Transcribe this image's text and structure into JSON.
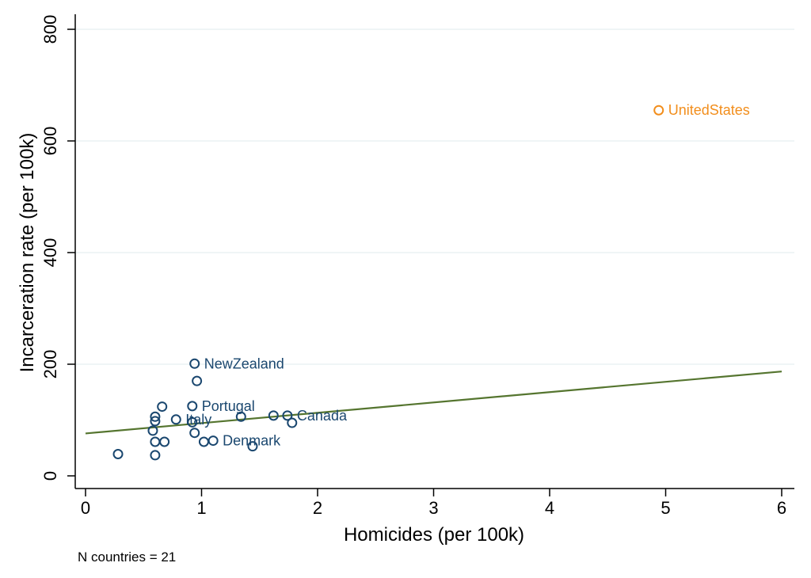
{
  "chart_data": {
    "type": "scatter",
    "title": "",
    "xlabel": "Homicides (per 100k)",
    "ylabel": "Incarceration rate (per 100k)",
    "xlim": [
      0,
      6
    ],
    "ylim": [
      0,
      800
    ],
    "xticks": [
      "0",
      "1",
      "2",
      "3",
      "4",
      "5",
      "6"
    ],
    "yticks": [
      "0",
      "200",
      "400",
      "600",
      "800"
    ],
    "grid": "horizontal",
    "colors": {
      "points": "#1a476f",
      "highlight": "#f28e1c",
      "fit_line": "#55752f",
      "grid": "#eaf2f3"
    },
    "series": [
      {
        "points": [
          {
            "x": 0.94,
            "y": 201,
            "label": "NewZealand"
          },
          {
            "x": 0.96,
            "y": 170,
            "label": ""
          },
          {
            "x": 0.92,
            "y": 125,
            "label": "Portugal"
          },
          {
            "x": 0.66,
            "y": 124,
            "label": ""
          },
          {
            "x": 0.6,
            "y": 106,
            "label": ""
          },
          {
            "x": 0.6,
            "y": 98,
            "label": ""
          },
          {
            "x": 0.78,
            "y": 101,
            "label": "Italy"
          },
          {
            "x": 0.92,
            "y": 96,
            "label": ""
          },
          {
            "x": 0.58,
            "y": 81,
            "label": ""
          },
          {
            "x": 0.94,
            "y": 77,
            "label": ""
          },
          {
            "x": 0.6,
            "y": 61,
            "label": ""
          },
          {
            "x": 0.68,
            "y": 61,
            "label": ""
          },
          {
            "x": 1.02,
            "y": 61,
            "label": ""
          },
          {
            "x": 1.1,
            "y": 63,
            "label": "Denmark"
          },
          {
            "x": 1.44,
            "y": 53,
            "label": ""
          },
          {
            "x": 1.34,
            "y": 106,
            "label": ""
          },
          {
            "x": 1.62,
            "y": 108,
            "label": ""
          },
          {
            "x": 1.74,
            "y": 108,
            "label": "Canada"
          },
          {
            "x": 1.78,
            "y": 95,
            "label": ""
          },
          {
            "x": 0.28,
            "y": 39,
            "label": ""
          },
          {
            "x": 0.6,
            "y": 37,
            "label": ""
          }
        ]
      },
      {
        "highlight": true,
        "points": [
          {
            "x": 4.94,
            "y": 655,
            "label": "UnitedStates"
          }
        ]
      }
    ],
    "fit_line": {
      "x": [
        0,
        6
      ],
      "y": [
        76,
        187
      ]
    }
  },
  "note": "N countries = 21"
}
